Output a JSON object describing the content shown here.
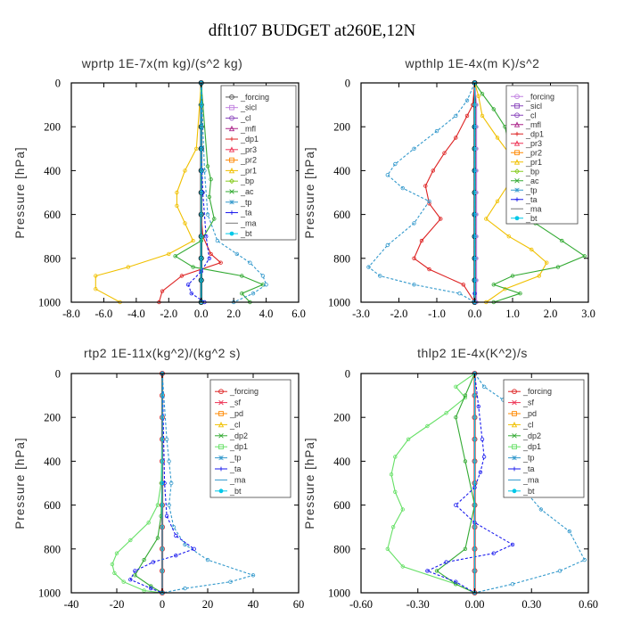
{
  "figure": {
    "title": "dflt107  BUDGET at260E,12N"
  },
  "chart_data": [
    {
      "type": "line",
      "title": "wprtp  1E-7x(m kg)/(s^2 kg)",
      "ylabel": "Pressure [hPa]",
      "xlim": [
        -8,
        6
      ],
      "ylim": [
        1000,
        0
      ],
      "xticks": [
        "-8.0",
        "-6.0",
        "-4.0",
        "-2.0",
        "0.0",
        "2.0",
        "4.0",
        "6.0"
      ],
      "yticks": [
        "0",
        "200",
        "400",
        "600",
        "800",
        "1000"
      ],
      "legend_position": "top-right",
      "legend": [
        "_forcing",
        "_sicl",
        "_cl",
        "_mfl",
        "_dp1",
        "_pr3",
        "_pr2",
        "_pr1",
        "_bp",
        "_ac",
        "_tp",
        "_ta",
        "_ma",
        "_bt"
      ],
      "series": [
        {
          "name": "_forcing",
          "color": "#000000",
          "x": [
            0,
            0,
            0,
            0,
            0,
            0,
            0,
            0,
            0,
            0,
            0
          ],
          "y": [
            0,
            100,
            200,
            300,
            400,
            500,
            600,
            700,
            800,
            900,
            1000
          ]
        },
        {
          "name": "_dp1",
          "color": "#dd2222",
          "x": [
            0,
            0,
            0,
            0,
            0,
            0,
            0.1,
            0.6,
            1.2,
            -1.2,
            -2.4,
            -2.6
          ],
          "y": [
            0,
            200,
            300,
            400,
            500,
            600,
            700,
            780,
            820,
            880,
            950,
            1000
          ]
        },
        {
          "name": "_pr1",
          "color": "#f0c000",
          "x": [
            0,
            -0.3,
            -1,
            -1.5,
            -1.5,
            -1,
            -0.5,
            -2,
            -4.5,
            -6.5,
            -6.5,
            -5
          ],
          "y": [
            0,
            300,
            400,
            500,
            560,
            640,
            720,
            780,
            840,
            880,
            940,
            1000
          ]
        },
        {
          "name": "_ac",
          "color": "#33aa33",
          "x": [
            0,
            0.4,
            0.6,
            0.5,
            0.8,
            0,
            -1.6,
            -0.5,
            2.5,
            3.8,
            2.5,
            3
          ],
          "y": [
            0,
            380,
            440,
            520,
            620,
            720,
            790,
            840,
            880,
            920,
            960,
            1000
          ]
        },
        {
          "name": "_tp",
          "color": "#3399cc",
          "x": [
            0,
            0.2,
            0.4,
            1,
            2.2,
            3,
            3.8,
            4,
            3.2,
            2
          ],
          "y": [
            0,
            400,
            600,
            720,
            780,
            820,
            880,
            920,
            960,
            1000
          ]
        },
        {
          "name": "_ta",
          "color": "#1a1aee",
          "x": [
            0,
            0,
            0.1,
            0.3,
            0.5,
            0,
            -0.8,
            -0.6,
            0.2
          ],
          "y": [
            0,
            300,
            500,
            700,
            800,
            860,
            920,
            960,
            1000
          ]
        },
        {
          "name": "_bt",
          "color": "#00c8e8",
          "x": [
            0,
            0,
            0,
            0,
            0,
            0,
            0,
            0,
            0,
            0,
            0
          ],
          "y": [
            0,
            100,
            200,
            300,
            400,
            500,
            600,
            700,
            800,
            900,
            1000
          ]
        }
      ]
    },
    {
      "type": "line",
      "title": "wpthlp  1E-4x(m K)/s^2",
      "ylabel": "Pressure [hPa]",
      "xlim": [
        -3,
        3
      ],
      "ylim": [
        1000,
        0
      ],
      "xticks": [
        "-3.0",
        "-2.0",
        "-1.0",
        "0.0",
        "1.0",
        "2.0",
        "3.0"
      ],
      "yticks": [
        "0",
        "200",
        "400",
        "600",
        "800",
        "1000"
      ],
      "legend_position": "top-right",
      "legend": [
        "_forcing",
        "_sicl",
        "_cl",
        "_mfl",
        "_dp1",
        "_pr3",
        "_pr2",
        "_pr1",
        "_bp",
        "_ac",
        "_tp",
        "_ta",
        "_ma",
        "_bt"
      ],
      "series": [
        {
          "name": "_forcing",
          "color": "#000000",
          "x": [
            0,
            0,
            0,
            0,
            0,
            0,
            0,
            0,
            0,
            0,
            0
          ],
          "y": [
            0,
            100,
            200,
            300,
            400,
            500,
            600,
            700,
            800,
            900,
            1000
          ]
        },
        {
          "name": "_sicl",
          "color": "#c080e0",
          "x": [
            0,
            0.05,
            0.05,
            0.05,
            0.05,
            0.05,
            0.05,
            0.05,
            0.05,
            0.05,
            0.05
          ],
          "y": [
            0,
            100,
            200,
            300,
            400,
            500,
            600,
            700,
            800,
            900,
            1000
          ]
        },
        {
          "name": "_dp1",
          "color": "#dd2222",
          "x": [
            0,
            -0.05,
            -0.2,
            -0.5,
            -0.8,
            -1.1,
            -1.3,
            -1.2,
            -0.9,
            -1.4,
            -1.6,
            -1.2,
            -0.3,
            0
          ],
          "y": [
            0,
            100,
            150,
            250,
            320,
            400,
            470,
            550,
            620,
            720,
            800,
            850,
            920,
            1000
          ]
        },
        {
          "name": "_pr1",
          "color": "#f0c000",
          "x": [
            0,
            0.1,
            0.2,
            0.6,
            0.9,
            1,
            0.9,
            0.6,
            0.3,
            0.9,
            1.5,
            1.9,
            1.7,
            0.8,
            0.3
          ],
          "y": [
            0,
            60,
            150,
            250,
            320,
            400,
            460,
            540,
            620,
            700,
            760,
            820,
            880,
            940,
            1000
          ]
        },
        {
          "name": "_ac",
          "color": "#33aa33",
          "x": [
            0,
            0.2,
            0.5,
            0.8,
            0.9,
            1.4,
            1.8,
            1.5,
            1.2,
            1.6,
            2.3,
            2.9,
            2.2,
            1,
            0.5,
            1.2,
            0.5
          ],
          "y": [
            0,
            50,
            120,
            200,
            280,
            350,
            420,
            480,
            560,
            640,
            720,
            790,
            840,
            880,
            920,
            960,
            1000
          ]
        },
        {
          "name": "_tp",
          "color": "#3399cc",
          "x": [
            0,
            -0.2,
            -0.5,
            -1,
            -1.6,
            -2.1,
            -2.3,
            -1.9,
            -1.2,
            -1.6,
            -2.3,
            -2.8,
            -2.5,
            -1.6,
            -0.4,
            0
          ],
          "y": [
            0,
            80,
            150,
            220,
            300,
            370,
            420,
            480,
            540,
            640,
            740,
            840,
            880,
            920,
            960,
            1000
          ]
        },
        {
          "name": "_ta",
          "color": "#1a1aee",
          "x": [
            0,
            0,
            0,
            0,
            0,
            0,
            0,
            0,
            0
          ],
          "y": [
            0,
            200,
            400,
            600,
            700,
            800,
            900,
            960,
            1000
          ]
        },
        {
          "name": "_bt",
          "color": "#00c8e8",
          "x": [
            0,
            0,
            0,
            0,
            0,
            0,
            0,
            0,
            0,
            0,
            0
          ],
          "y": [
            0,
            100,
            200,
            300,
            400,
            500,
            600,
            700,
            800,
            900,
            1000
          ]
        }
      ]
    },
    {
      "type": "line",
      "title": "rtp2  1E-11x(kg^2)/(kg^2 s)",
      "ylabel": "Pressure [hPa]",
      "xlim": [
        -40,
        60
      ],
      "ylim": [
        1000,
        0
      ],
      "xticks": [
        "-40",
        "-20",
        "0",
        "20",
        "40",
        "60"
      ],
      "yticks": [
        "0",
        "200",
        "400",
        "600",
        "800",
        "1000"
      ],
      "legend_position": "top-right",
      "legend": [
        "_forcing",
        "_sf",
        "_pd",
        "_cl",
        "_dp2",
        "_dp1",
        "_tp",
        "_ta",
        "_ma",
        "_bt"
      ],
      "series": [
        {
          "name": "_forcing",
          "color": "#dd2222",
          "x": [
            0,
            0,
            0,
            0,
            0,
            0,
            0,
            0,
            0,
            0,
            0
          ],
          "y": [
            0,
            100,
            200,
            300,
            400,
            500,
            600,
            700,
            800,
            900,
            1000
          ]
        },
        {
          "name": "_dp1",
          "color": "#66e066",
          "x": [
            0,
            0,
            -0.5,
            -2,
            -6,
            -14,
            -20,
            -22,
            -21,
            -17,
            -8,
            0
          ],
          "y": [
            0,
            300,
            500,
            600,
            680,
            760,
            820,
            870,
            910,
            950,
            990,
            1000
          ]
        },
        {
          "name": "_dp2",
          "color": "#33aa33",
          "x": [
            0,
            0,
            -0.5,
            -2,
            -8,
            -12,
            -5,
            0
          ],
          "y": [
            0,
            500,
            650,
            750,
            850,
            920,
            970,
            1000
          ]
        },
        {
          "name": "_tp",
          "color": "#3399cc",
          "x": [
            0,
            2,
            3,
            4,
            3,
            5,
            10,
            20,
            40,
            30,
            10,
            0
          ],
          "y": [
            0,
            300,
            400,
            500,
            600,
            700,
            780,
            850,
            920,
            950,
            980,
            1000
          ]
        },
        {
          "name": "_ta",
          "color": "#1a1aee",
          "x": [
            0,
            1,
            2,
            6,
            14,
            6,
            -4,
            -12,
            -14,
            -5,
            0
          ],
          "y": [
            0,
            500,
            650,
            740,
            800,
            830,
            860,
            900,
            940,
            980,
            1000
          ]
        },
        {
          "name": "_bt",
          "color": "#00c8e8",
          "x": [
            0,
            0,
            0,
            0,
            0,
            0,
            0,
            0,
            0,
            0,
            0
          ],
          "y": [
            0,
            100,
            200,
            300,
            400,
            500,
            600,
            700,
            800,
            900,
            1000
          ]
        }
      ]
    },
    {
      "type": "line",
      "title": "thlp2  1E-4x(K^2)/s",
      "ylabel": "Pressure [hPa]",
      "xlim": [
        -0.6,
        0.6
      ],
      "ylim": [
        1000,
        0
      ],
      "xticks": [
        "-0.60",
        "-0.30",
        "0.00",
        "0.30",
        "0.60"
      ],
      "yticks": [
        "0",
        "200",
        "400",
        "600",
        "800",
        "1000"
      ],
      "legend_position": "top-right",
      "legend": [
        "_forcing",
        "_sf",
        "_pd",
        "_cl",
        "_dp2",
        "_dp1",
        "_tp",
        "_ta",
        "_ma",
        "_bt"
      ],
      "series": [
        {
          "name": "_forcing",
          "color": "#dd2222",
          "x": [
            0,
            0,
            0,
            0,
            0,
            0,
            0,
            0,
            0,
            0,
            0
          ],
          "y": [
            0,
            100,
            200,
            300,
            400,
            500,
            600,
            700,
            800,
            900,
            1000
          ]
        },
        {
          "name": "_dp1",
          "color": "#66e066",
          "x": [
            0,
            -0.1,
            -0.05,
            -0.15,
            -0.25,
            -0.35,
            -0.42,
            -0.44,
            -0.42,
            -0.38,
            -0.43,
            -0.46,
            -0.38,
            -0.1,
            0
          ],
          "y": [
            0,
            60,
            110,
            180,
            240,
            300,
            380,
            460,
            540,
            620,
            700,
            800,
            880,
            960,
            1000
          ]
        },
        {
          "name": "_dp2",
          "color": "#33aa33",
          "x": [
            0,
            -0.05,
            -0.1,
            -0.05,
            0,
            -0.05,
            -0.2,
            -0.1,
            0
          ],
          "y": [
            0,
            100,
            200,
            400,
            600,
            800,
            900,
            960,
            1000
          ]
        },
        {
          "name": "_tp",
          "color": "#3399cc",
          "x": [
            0,
            0.05,
            0.15,
            0.22,
            0.3,
            0.35,
            0.38,
            0.36,
            0.25,
            0.35,
            0.5,
            0.58,
            0.45,
            0.2,
            0
          ],
          "y": [
            0,
            60,
            120,
            200,
            280,
            360,
            420,
            480,
            520,
            620,
            720,
            850,
            900,
            960,
            1000
          ]
        },
        {
          "name": "_ta",
          "color": "#1a1aee",
          "x": [
            0,
            0.02,
            0.04,
            0.05,
            0.03,
            0,
            -0.1,
            0,
            0.2,
            0.1,
            -0.15,
            -0.25,
            -0.1,
            0
          ],
          "y": [
            0,
            150,
            300,
            380,
            450,
            520,
            600,
            680,
            780,
            820,
            860,
            900,
            950,
            1000
          ]
        },
        {
          "name": "_bt",
          "color": "#00c8e8",
          "x": [
            0,
            0,
            0,
            0,
            0,
            0,
            0,
            0,
            0,
            0,
            0
          ],
          "y": [
            0,
            100,
            200,
            300,
            400,
            500,
            600,
            700,
            800,
            900,
            1000
          ]
        }
      ]
    }
  ]
}
